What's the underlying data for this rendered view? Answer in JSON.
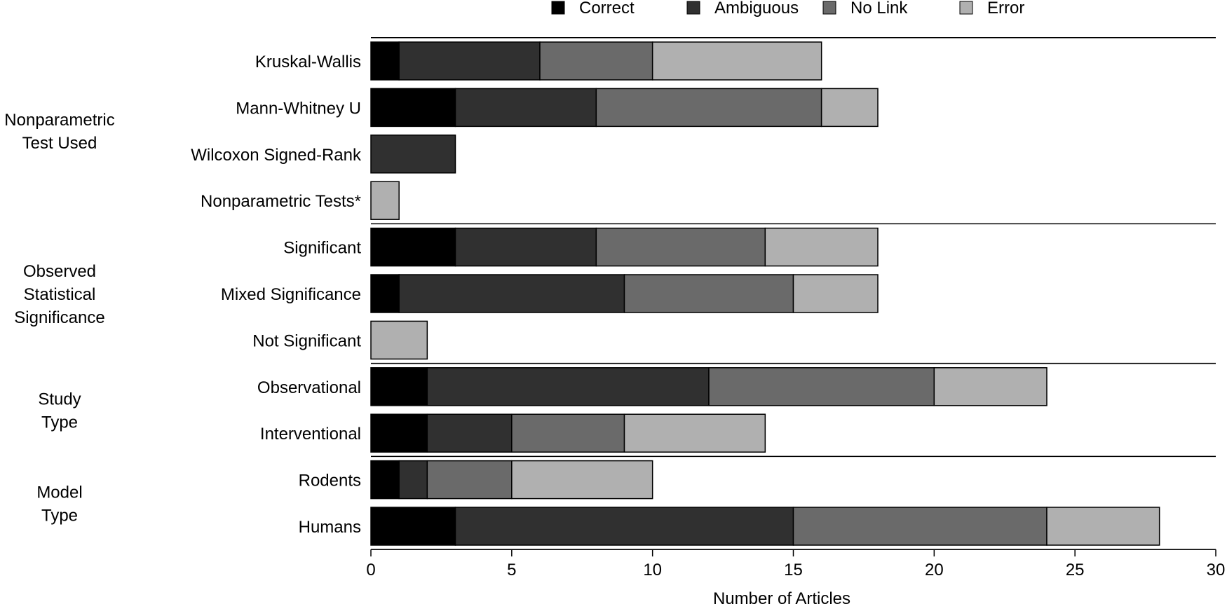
{
  "chart_data": {
    "type": "bar",
    "orientation": "horizontal",
    "stacked": true,
    "xlabel": "Number of Articles",
    "xlim": [
      0,
      30
    ],
    "xticks": [
      0,
      5,
      10,
      15,
      20,
      25,
      30
    ],
    "legend_position": "top",
    "grid": false,
    "groups": [
      {
        "label": "Nonparametric\nTest Used",
        "categories": [
          "Kruskal-Wallis",
          "Mann-Whitney U",
          "Wilcoxon Signed-Rank",
          "Nonparametric Tests*"
        ]
      },
      {
        "label": "Observed\nStatistical\nSignificance",
        "categories": [
          "Significant",
          "Mixed Significance",
          "Not Significant"
        ]
      },
      {
        "label": "Study\nType",
        "categories": [
          "Observational",
          "Interventional"
        ]
      },
      {
        "label": "Model\nType",
        "categories": [
          "Rodents",
          "Humans"
        ]
      }
    ],
    "categories": [
      "Kruskal-Wallis",
      "Mann-Whitney U",
      "Wilcoxon Signed-Rank",
      "Nonparametric Tests*",
      "Significant",
      "Mixed Significance",
      "Not Significant",
      "Observational",
      "Interventional",
      "Rodents",
      "Humans"
    ],
    "series": [
      {
        "name": "Correct",
        "color": "#000000",
        "values": [
          1,
          3,
          0,
          0,
          3,
          1,
          0,
          2,
          2,
          1,
          3
        ]
      },
      {
        "name": "Ambiguous",
        "color": "#303030",
        "values": [
          5,
          5,
          3,
          0,
          5,
          8,
          0,
          10,
          3,
          1,
          12
        ]
      },
      {
        "name": "No Link",
        "color": "#6a6a6a",
        "values": [
          4,
          8,
          0,
          0,
          6,
          6,
          0,
          8,
          4,
          3,
          9
        ]
      },
      {
        "name": "Error",
        "color": "#b0b0b0",
        "values": [
          6,
          2,
          0,
          1,
          4,
          3,
          2,
          4,
          5,
          5,
          4
        ]
      }
    ]
  }
}
